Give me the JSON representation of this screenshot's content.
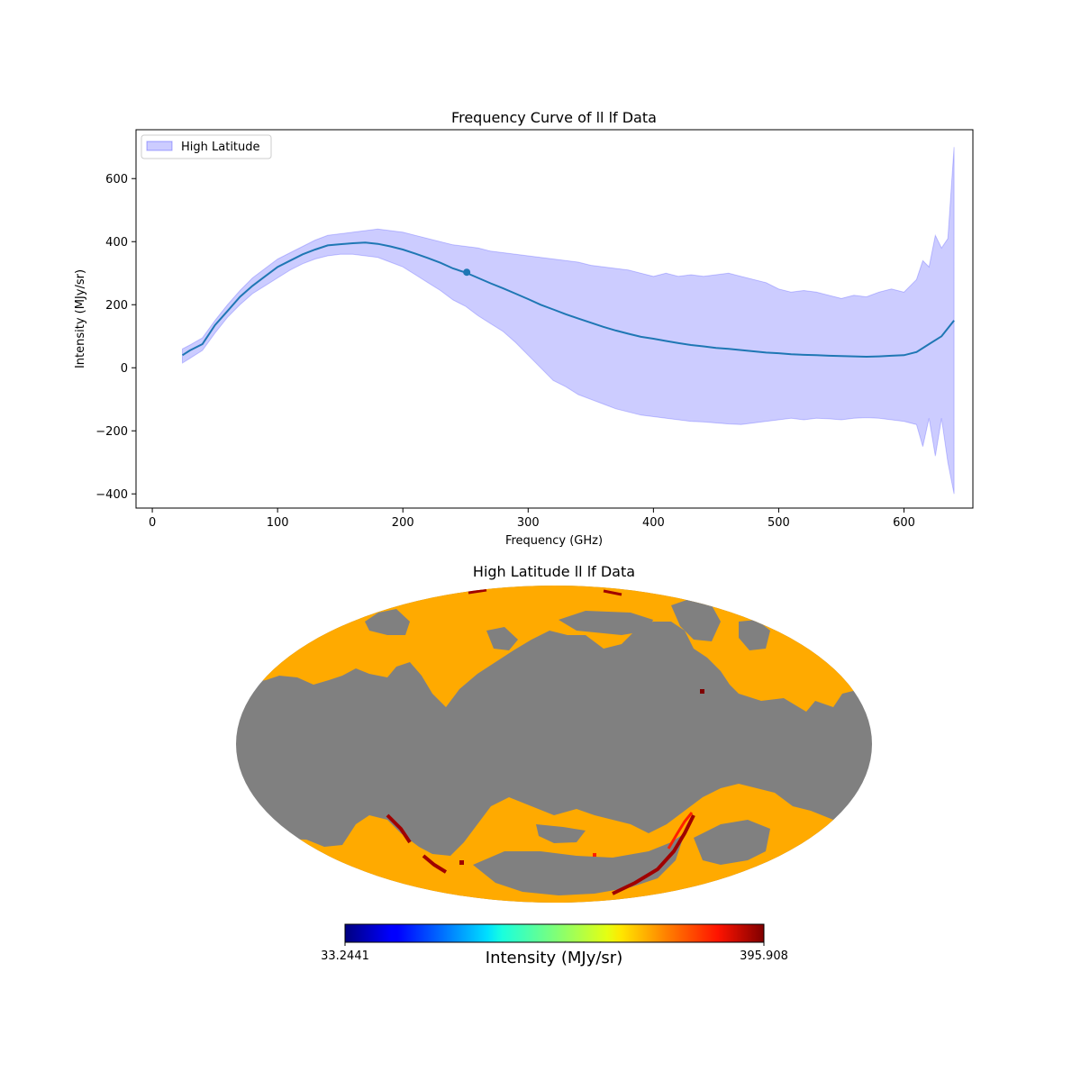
{
  "chart_data": [
    {
      "type": "line",
      "title": "Frequency Curve of ll lf Data",
      "xlabel": "Frequency (GHz)",
      "ylabel": "Intensity (MJy/sr)",
      "xlim": [
        -13,
        655
      ],
      "ylim": [
        -445,
        755
      ],
      "xticks": [
        0,
        100,
        200,
        300,
        400,
        500,
        600
      ],
      "xtick_labels": [
        "0",
        "100",
        "200",
        "300",
        "400",
        "500",
        "600"
      ],
      "yticks": [
        -400,
        -200,
        0,
        200,
        400,
        600
      ],
      "ytick_labels": [
        "−400",
        "−200",
        "0",
        "200",
        "400",
        "600"
      ],
      "grid": false,
      "legend": {
        "position": "top-left",
        "entries": [
          "High Latitude"
        ]
      },
      "line_color": "#1f77b4",
      "band_color": "#0000ff",
      "series": [
        {
          "kind": "line",
          "x": [
            24,
            30,
            40,
            50,
            60,
            70,
            80,
            90,
            100,
            110,
            120,
            130,
            140,
            150,
            160,
            170,
            180,
            190,
            200,
            210,
            220,
            230,
            240,
            250,
            260,
            270,
            280,
            290,
            300,
            310,
            320,
            330,
            340,
            350,
            360,
            370,
            380,
            390,
            400,
            410,
            420,
            430,
            440,
            450,
            460,
            470,
            480,
            490,
            500,
            510,
            520,
            530,
            540,
            550,
            560,
            570,
            580,
            590,
            600,
            610,
            620,
            630,
            640
          ],
          "y": [
            40,
            55,
            75,
            135,
            180,
            225,
            260,
            290,
            320,
            340,
            360,
            375,
            388,
            392,
            395,
            397,
            393,
            385,
            375,
            362,
            348,
            333,
            315,
            302,
            285,
            268,
            252,
            235,
            218,
            200,
            185,
            170,
            156,
            143,
            130,
            118,
            108,
            98,
            92,
            85,
            78,
            72,
            68,
            63,
            60,
            56,
            52,
            48,
            46,
            43,
            41,
            40,
            38,
            37,
            36,
            35,
            36,
            38,
            40,
            50,
            75,
            100,
            150
          ]
        },
        {
          "kind": "band",
          "name": "High Latitude",
          "x": [
            24,
            30,
            40,
            50,
            60,
            70,
            80,
            90,
            100,
            110,
            120,
            130,
            140,
            150,
            160,
            170,
            180,
            190,
            200,
            210,
            220,
            230,
            240,
            250,
            260,
            270,
            280,
            290,
            300,
            310,
            320,
            330,
            340,
            350,
            360,
            370,
            380,
            390,
            400,
            410,
            420,
            430,
            440,
            450,
            460,
            470,
            480,
            490,
            500,
            510,
            520,
            530,
            540,
            550,
            560,
            570,
            580,
            590,
            600,
            610,
            615,
            620,
            625,
            630,
            635,
            640
          ],
          "upper": [
            60,
            72,
            95,
            150,
            200,
            245,
            285,
            315,
            345,
            365,
            385,
            405,
            420,
            425,
            430,
            435,
            440,
            435,
            430,
            420,
            410,
            400,
            390,
            385,
            380,
            370,
            365,
            360,
            355,
            350,
            345,
            340,
            335,
            325,
            320,
            315,
            310,
            300,
            290,
            300,
            290,
            295,
            290,
            295,
            300,
            290,
            280,
            270,
            250,
            240,
            245,
            240,
            230,
            220,
            230,
            225,
            240,
            250,
            240,
            280,
            340,
            320,
            420,
            380,
            410,
            700
          ],
          "lower": [
            15,
            30,
            55,
            110,
            160,
            200,
            235,
            260,
            285,
            310,
            330,
            345,
            355,
            360,
            360,
            355,
            350,
            335,
            320,
            295,
            270,
            245,
            215,
            195,
            165,
            140,
            115,
            80,
            40,
            0,
            -40,
            -60,
            -85,
            -100,
            -115,
            -130,
            -140,
            -150,
            -155,
            -160,
            -165,
            -170,
            -172,
            -175,
            -178,
            -180,
            -175,
            -170,
            -165,
            -160,
            -165,
            -160,
            -162,
            -165,
            -160,
            -158,
            -160,
            -165,
            -170,
            -180,
            -250,
            -160,
            -280,
            -160,
            -300,
            -400
          ]
        },
        {
          "kind": "point",
          "x": [
            251
          ],
          "y": [
            303
          ]
        }
      ]
    },
    {
      "type": "heatmap",
      "title": "High Latitude ll lf Data",
      "projection": "mollweide",
      "colormap": "jet",
      "colorbar": {
        "label": "Intensity (MJy/sr)",
        "min_label": "33.2441",
        "max_label": "395.908",
        "range": [
          33.2441,
          395.908
        ]
      },
      "masked_color": "#808080",
      "dominant_color": "#ffaa00"
    }
  ]
}
